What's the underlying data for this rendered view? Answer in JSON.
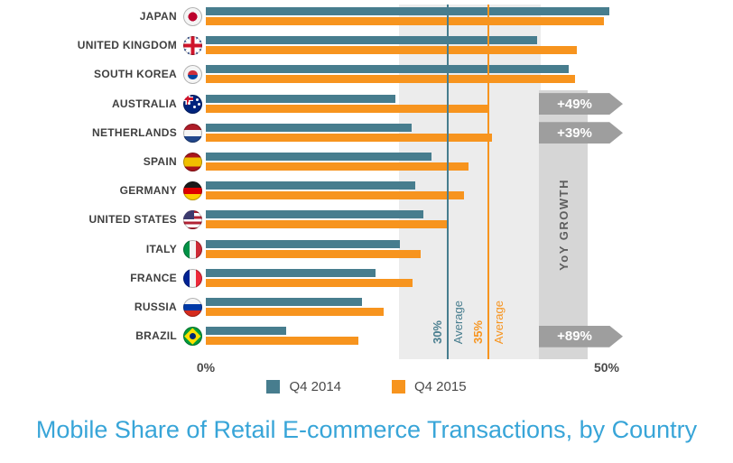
{
  "chart_data": {
    "type": "bar",
    "orientation": "horizontal",
    "title": "Mobile Share of Retail E-commerce Transactions, by Country",
    "title_color": "#38a5d8",
    "xlim": [
      0,
      50
    ],
    "x_ticks": [
      "0%",
      "50%"
    ],
    "legend_position": "bottom",
    "series": [
      {
        "name": "Q4 2014",
        "color": "#477d8e"
      },
      {
        "name": "Q4 2015",
        "color": "#f7941e"
      }
    ],
    "countries": [
      {
        "label": "JAPAN",
        "flag": "jp",
        "q4_2014": 50,
        "q4_2015": 49.3
      },
      {
        "label": "UNITED KINGDOM",
        "flag": "uk",
        "q4_2014": 41,
        "q4_2015": 46
      },
      {
        "label": "SOUTH KOREA",
        "flag": "kr",
        "q4_2014": 45,
        "q4_2015": 45.8
      },
      {
        "label": "AUSTRALIA",
        "flag": "au",
        "q4_2014": 23.5,
        "q4_2015": 35,
        "yoy_growth": "+49%"
      },
      {
        "label": "NETHERLANDS",
        "flag": "nl",
        "q4_2014": 25.5,
        "q4_2015": 35.5,
        "yoy_growth": "+39%"
      },
      {
        "label": "SPAIN",
        "flag": "es",
        "q4_2014": 28,
        "q4_2015": 32.5
      },
      {
        "label": "GERMANY",
        "flag": "de",
        "q4_2014": 26,
        "q4_2015": 32
      },
      {
        "label": "UNITED STATES",
        "flag": "us",
        "q4_2014": 27,
        "q4_2015": 30
      },
      {
        "label": "ITALY",
        "flag": "it",
        "q4_2014": 24,
        "q4_2015": 26.6
      },
      {
        "label": "FRANCE",
        "flag": "fr",
        "q4_2014": 21,
        "q4_2015": 25.6
      },
      {
        "label": "RUSSIA",
        "flag": "ru",
        "q4_2014": 19.3,
        "q4_2015": 22
      },
      {
        "label": "BRAZIL",
        "flag": "br",
        "q4_2014": 10,
        "q4_2015": 18.9,
        "yoy_growth": "+89%"
      }
    ],
    "averages": [
      {
        "value": 30,
        "label": "30%",
        "text": "Average",
        "color": "#477d8e"
      },
      {
        "value": 35,
        "label": "35%",
        "text": "Average",
        "color": "#f7941e"
      }
    ],
    "yoy_panel_label": "YoY GROWTH"
  }
}
